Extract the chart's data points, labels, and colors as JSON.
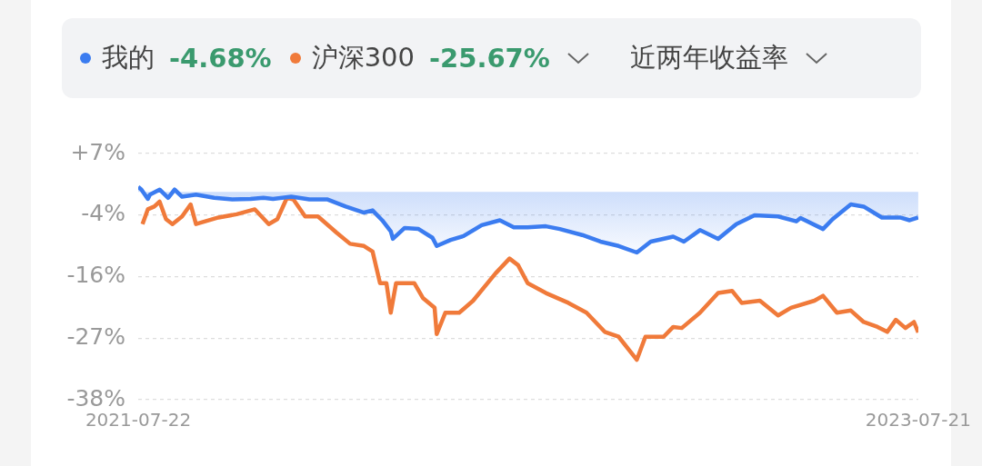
{
  "chart_data": {
    "type": "line",
    "legend": "top",
    "grid": "y",
    "marker": "none",
    "line_style": "solid",
    "annotations": [
      "-4.68%",
      "-25.67%",
      "近两年收益率"
    ],
    "xlim": [
      "2021-07-22",
      "2023-07-21"
    ],
    "xticks": [
      "2021-07-22",
      "2023-07-21"
    ],
    "ylim": [
      -38,
      7
    ],
    "yticks": [
      {
        "value": 7,
        "label": "+7%"
      },
      {
        "value": -4.25,
        "label": "-4%"
      },
      {
        "value": -15.5,
        "label": "-16%"
      },
      {
        "value": -26.75,
        "label": "-27%"
      },
      {
        "value": -38,
        "label": "-38%"
      }
    ],
    "series": [
      {
        "name": "我的",
        "type": "area",
        "color": "#3b7cf0",
        "x": [
          "2021-07-22",
          "2021-07-25",
          "2021-07-31",
          "2021-08-02",
          "2021-08-11",
          "2021-08-19",
          "2021-08-25",
          "2021-09-01",
          "2021-09-14",
          "2021-10-01",
          "2021-10-18",
          "2021-11-04",
          "2021-11-16",
          "2021-11-25",
          "2021-12-12",
          "2021-12-29",
          "2022-01-15",
          "2022-02-01",
          "2022-02-18",
          "2022-02-26",
          "2022-03-07",
          "2022-03-15",
          "2022-03-17",
          "2022-03-28",
          "2022-04-10",
          "2022-04-23",
          "2022-04-27",
          "2022-05-10",
          "2022-05-22",
          "2022-06-08",
          "2022-06-25",
          "2022-07-08",
          "2022-07-21",
          "2022-08-07",
          "2022-08-20",
          "2022-09-10",
          "2022-09-27",
          "2022-10-14",
          "2022-10-31",
          "2022-11-13",
          "2022-12-04",
          "2022-12-14",
          "2022-12-29",
          "2023-01-15",
          "2023-02-01",
          "2023-02-18",
          "2023-03-12",
          "2023-03-29",
          "2023-04-02",
          "2023-04-23",
          "2023-05-02",
          "2023-05-19",
          "2023-05-31",
          "2023-06-17",
          "2023-07-04",
          "2023-07-13",
          "2023-07-21"
        ],
        "values": [
          0.9,
          0.4,
          -1.3,
          -0.5,
          0.4,
          -1.1,
          0.4,
          -0.9,
          -0.5,
          -1.1,
          -1.4,
          -1.3,
          -1.1,
          -1.3,
          -0.9,
          -1.4,
          -1.4,
          -2.7,
          -3.8,
          -3.4,
          -5.2,
          -7.2,
          -8.6,
          -6.6,
          -6.8,
          -8.4,
          -9.9,
          -8.8,
          -8.1,
          -6.1,
          -5.2,
          -6.5,
          -6.5,
          -6.3,
          -6.8,
          -7.9,
          -9.1,
          -9.9,
          -11.1,
          -9.1,
          -8.2,
          -9.1,
          -7.0,
          -8.6,
          -5.9,
          -4.3,
          -4.5,
          -5.4,
          -4.8,
          -6.8,
          -5.0,
          -2.3,
          -2.7,
          -4.7,
          -4.7,
          -5.2,
          -4.7
        ]
      },
      {
        "name": "沪深300",
        "type": "line",
        "color": "#f07a3a",
        "x": [
          "2021-07-26",
          "2021-07-31",
          "2021-08-06",
          "2021-08-11",
          "2021-08-17",
          "2021-08-23",
          "2021-09-01",
          "2021-09-09",
          "2021-09-14",
          "2021-10-05",
          "2021-10-22",
          "2021-11-08",
          "2021-11-21",
          "2021-11-29",
          "2021-12-08",
          "2021-12-14",
          "2021-12-25",
          "2022-01-06",
          "2022-01-23",
          "2022-02-05",
          "2022-02-18",
          "2022-02-26",
          "2022-03-05",
          "2022-03-11",
          "2022-03-15",
          "2022-03-20",
          "2022-04-06",
          "2022-04-14",
          "2022-04-25",
          "2022-04-27",
          "2022-05-05",
          "2022-05-18",
          "2022-05-31",
          "2022-06-21",
          "2022-07-04",
          "2022-07-12",
          "2022-07-21",
          "2022-08-07",
          "2022-08-28",
          "2022-09-14",
          "2022-10-01",
          "2022-10-14",
          "2022-10-31",
          "2022-11-08",
          "2022-11-25",
          "2022-12-04",
          "2022-12-12",
          "2022-12-29",
          "2023-01-15",
          "2023-01-28",
          "2023-02-06",
          "2023-02-23",
          "2023-03-12",
          "2023-03-24",
          "2023-04-15",
          "2023-04-23",
          "2023-05-06",
          "2023-05-19",
          "2023-05-31",
          "2023-06-13",
          "2023-06-22",
          "2023-06-30",
          "2023-07-09",
          "2023-07-17",
          "2023-07-21"
        ],
        "values": [
          -5.9,
          -3.2,
          -2.7,
          -1.8,
          -5.0,
          -5.9,
          -4.5,
          -2.3,
          -5.9,
          -4.7,
          -4.1,
          -3.2,
          -5.9,
          -5.0,
          -1.1,
          -1.4,
          -4.5,
          -4.5,
          -7.4,
          -9.5,
          -9.9,
          -10.9,
          -16.7,
          -16.7,
          -22.1,
          -16.7,
          -16.7,
          -19.4,
          -21.2,
          -26.0,
          -22.1,
          -22.1,
          -19.9,
          -14.9,
          -12.2,
          -13.4,
          -16.7,
          -18.5,
          -20.3,
          -22.1,
          -25.6,
          -26.5,
          -30.7,
          -26.5,
          -26.5,
          -24.7,
          -24.9,
          -22.1,
          -18.5,
          -18.1,
          -20.3,
          -19.9,
          -22.6,
          -21.2,
          -19.9,
          -19.0,
          -22.1,
          -21.7,
          -23.8,
          -24.7,
          -25.6,
          -23.4,
          -24.9,
          -23.8,
          -25.7
        ]
      }
    ]
  }
}
